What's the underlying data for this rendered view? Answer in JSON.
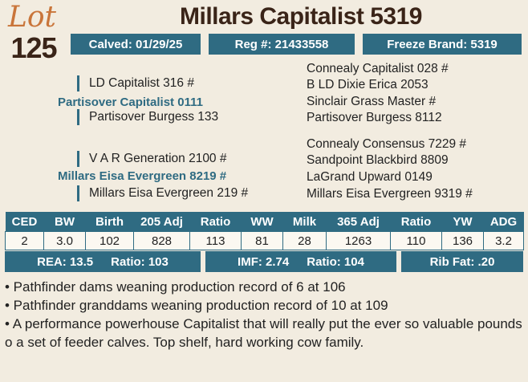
{
  "lot": {
    "word": "Lot",
    "number": "125"
  },
  "animal_name": "Millars Capitalist 5319",
  "info_bar": {
    "calved": "Calved: 01/29/25",
    "reg": "Reg #: 21433558",
    "freeze_brand": "Freeze Brand: 5319"
  },
  "pedigree": {
    "sire_sire": "LD Capitalist 316 #",
    "sire": "Partisover Capitalist 0111",
    "sire_dam": "Partisover Burgess 133",
    "dam_sire": "V A R Generation 2100 #",
    "dam": "Millars Eisa Evergreen 8219 #",
    "dam_dam": "Millars Eisa Evergreen 219 #",
    "right": [
      "Connealy Capitalist 028 #",
      "B LD Dixie Erica 2053",
      "Sinclair Grass Master #",
      "Partisover Burgess 8112",
      "Connealy Consensus 7229 #",
      "Sandpoint Blackbird 8809",
      "LaGrand Upward 0149",
      "Millars Eisa Evergreen 9319 #"
    ]
  },
  "epd": {
    "headers": [
      "CED",
      "BW",
      "Birth",
      "205 Adj",
      "Ratio",
      "WW",
      "Milk",
      "365 Adj",
      "Ratio",
      "YW",
      "ADG"
    ],
    "values": [
      "2",
      "3.0",
      "102",
      "828",
      "113",
      "81",
      "28",
      "1263",
      "110",
      "136",
      "3.2"
    ]
  },
  "carcass": {
    "rea": "REA: 13.5",
    "rea_ratio": "Ratio: 103",
    "imf": "IMF: 2.74",
    "imf_ratio": "Ratio: 104",
    "rib_fat": "Rib Fat: .20"
  },
  "notes": [
    "• Pathfinder dams weaning production record of 6 at 106",
    "• Pathfinder granddams weaning production record of 10 at 109",
    "• A performance powerhouse Capitalist that will really put the ever so valuable pounds o a set of feeder calves. Top shelf, hard working cow family."
  ]
}
